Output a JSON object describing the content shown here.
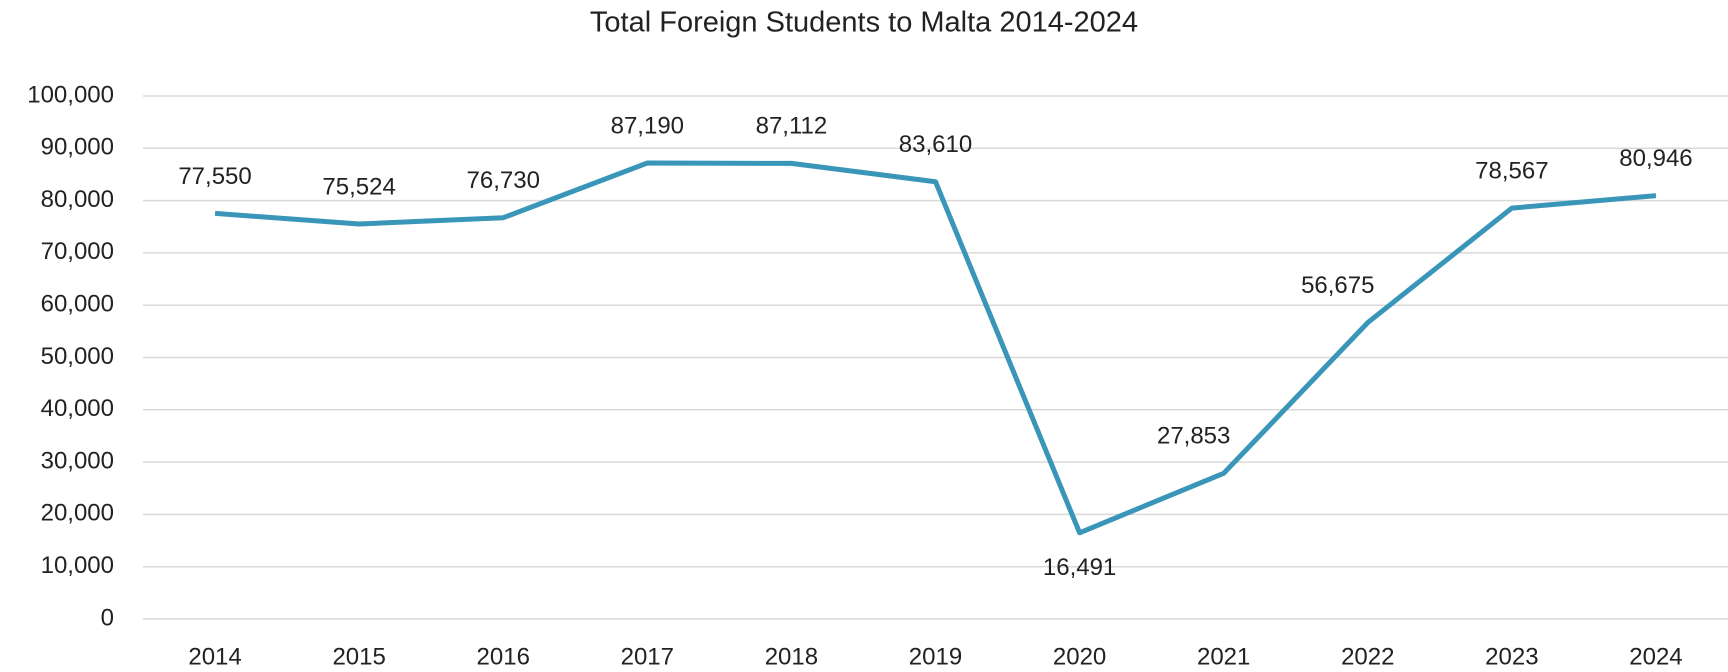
{
  "chart_data": {
    "type": "line",
    "title": "Total Foreign Students to Malta 2014-2024",
    "categories": [
      "2014",
      "2015",
      "2016",
      "2017",
      "2018",
      "2019",
      "2020",
      "2021",
      "2022",
      "2023",
      "2024"
    ],
    "series": [
      {
        "name": "Total Foreign Students",
        "color": "#3a96b9",
        "values": [
          77550,
          75524,
          76730,
          87190,
          87112,
          83610,
          16491,
          27853,
          56675,
          78567,
          80946
        ],
        "value_labels": [
          "77,550",
          "75,524",
          "76,730",
          "87,190",
          "87,112",
          "83,610",
          "16,491",
          "27,853",
          "56,675",
          "78,567",
          "80,946"
        ]
      }
    ],
    "ylim": [
      0,
      100000
    ],
    "yticks": [
      0,
      {
        "value": 10000,
        "label": "10,000"
      },
      {
        "value": 20000,
        "label": "20,000"
      },
      {
        "value": 30000,
        "label": "30,000"
      },
      {
        "value": 40000,
        "label": "40,000"
      },
      {
        "value": 50000,
        "label": "50,000"
      },
      {
        "value": 60000,
        "label": "60,000"
      },
      {
        "value": 70000,
        "label": "70,000"
      },
      {
        "value": 80000,
        "label": "80,000"
      },
      {
        "value": 90000,
        "label": "90,000"
      },
      {
        "value": 100000,
        "label": "100,000"
      }
    ],
    "grid": true
  }
}
